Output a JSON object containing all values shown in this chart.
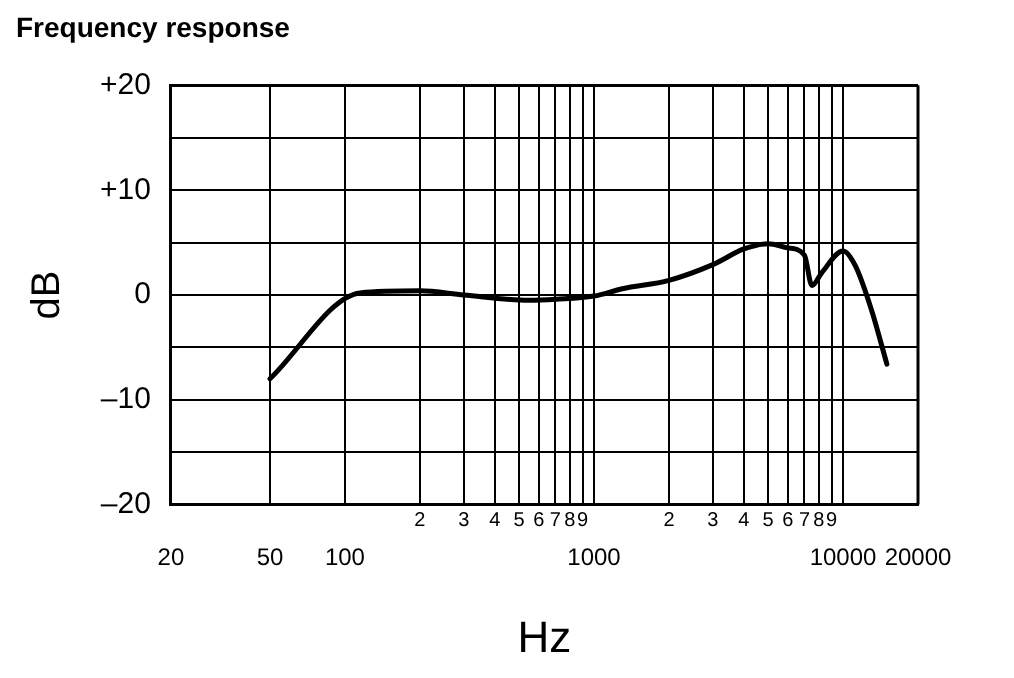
{
  "chart_data": {
    "type": "line",
    "title": "Frequency response",
    "xlabel": "Hz",
    "ylabel": "dB",
    "x": [
      50,
      115,
      200,
      300,
      550,
      705,
      1000,
      1300,
      2000,
      3000,
      4000,
      5000,
      6000,
      7000,
      7500,
      8200,
      10000,
      11200,
      13000,
      15000
    ],
    "series": [
      {
        "color": "#000000",
        "values": [
          -8,
          0.2,
          0.4,
          0,
          -0.5,
          -0.4,
          -0.1,
          0.6,
          1.4,
          2.9,
          4.4,
          4.9,
          4.5,
          3.8,
          0.9,
          2.1,
          4.2,
          2.8,
          -1.4,
          -6.6
        ]
      }
    ],
    "log": "x",
    "xlim": [
      20,
      20000
    ],
    "ylim": [
      -20,
      20
    ],
    "xticks": [
      20,
      50,
      100,
      {
        "value": 200,
        "label": null
      },
      {
        "value": 300,
        "label": null
      },
      {
        "value": 400,
        "label": null
      },
      {
        "value": 500,
        "label": null
      },
      {
        "value": 600,
        "label": null
      },
      {
        "value": 700,
        "label": null
      },
      {
        "value": 800,
        "label": null
      },
      {
        "value": 900,
        "label": null
      },
      1000,
      {
        "value": 2000,
        "label": null
      },
      {
        "value": 3000,
        "label": null
      },
      {
        "value": 4000,
        "label": null
      },
      {
        "value": 5000,
        "label": null
      },
      {
        "value": 6000,
        "label": null
      },
      {
        "value": 7000,
        "label": null
      },
      {
        "value": 8000,
        "label": null
      },
      {
        "value": 9000,
        "label": null
      },
      10000,
      20000
    ],
    "annotations": [
      "2",
      "3",
      "4",
      "5",
      "6",
      "7",
      "8",
      "9",
      "2",
      "3",
      "4",
      "5",
      "6",
      "7",
      "8",
      "9"
    ],
    "yticks": [
      {
        "value": -20,
        "label": "–20"
      },
      {
        "value": -15,
        "label": null
      },
      {
        "value": -10,
        "label": "–10"
      },
      {
        "value": -5,
        "label": null
      },
      0,
      {
        "value": 5,
        "label": null
      },
      {
        "value": 10,
        "label": "+10"
      },
      {
        "value": 15,
        "label": null
      },
      {
        "value": 20,
        "label": "+20"
      }
    ],
    "grid": true,
    "legend": false
  }
}
